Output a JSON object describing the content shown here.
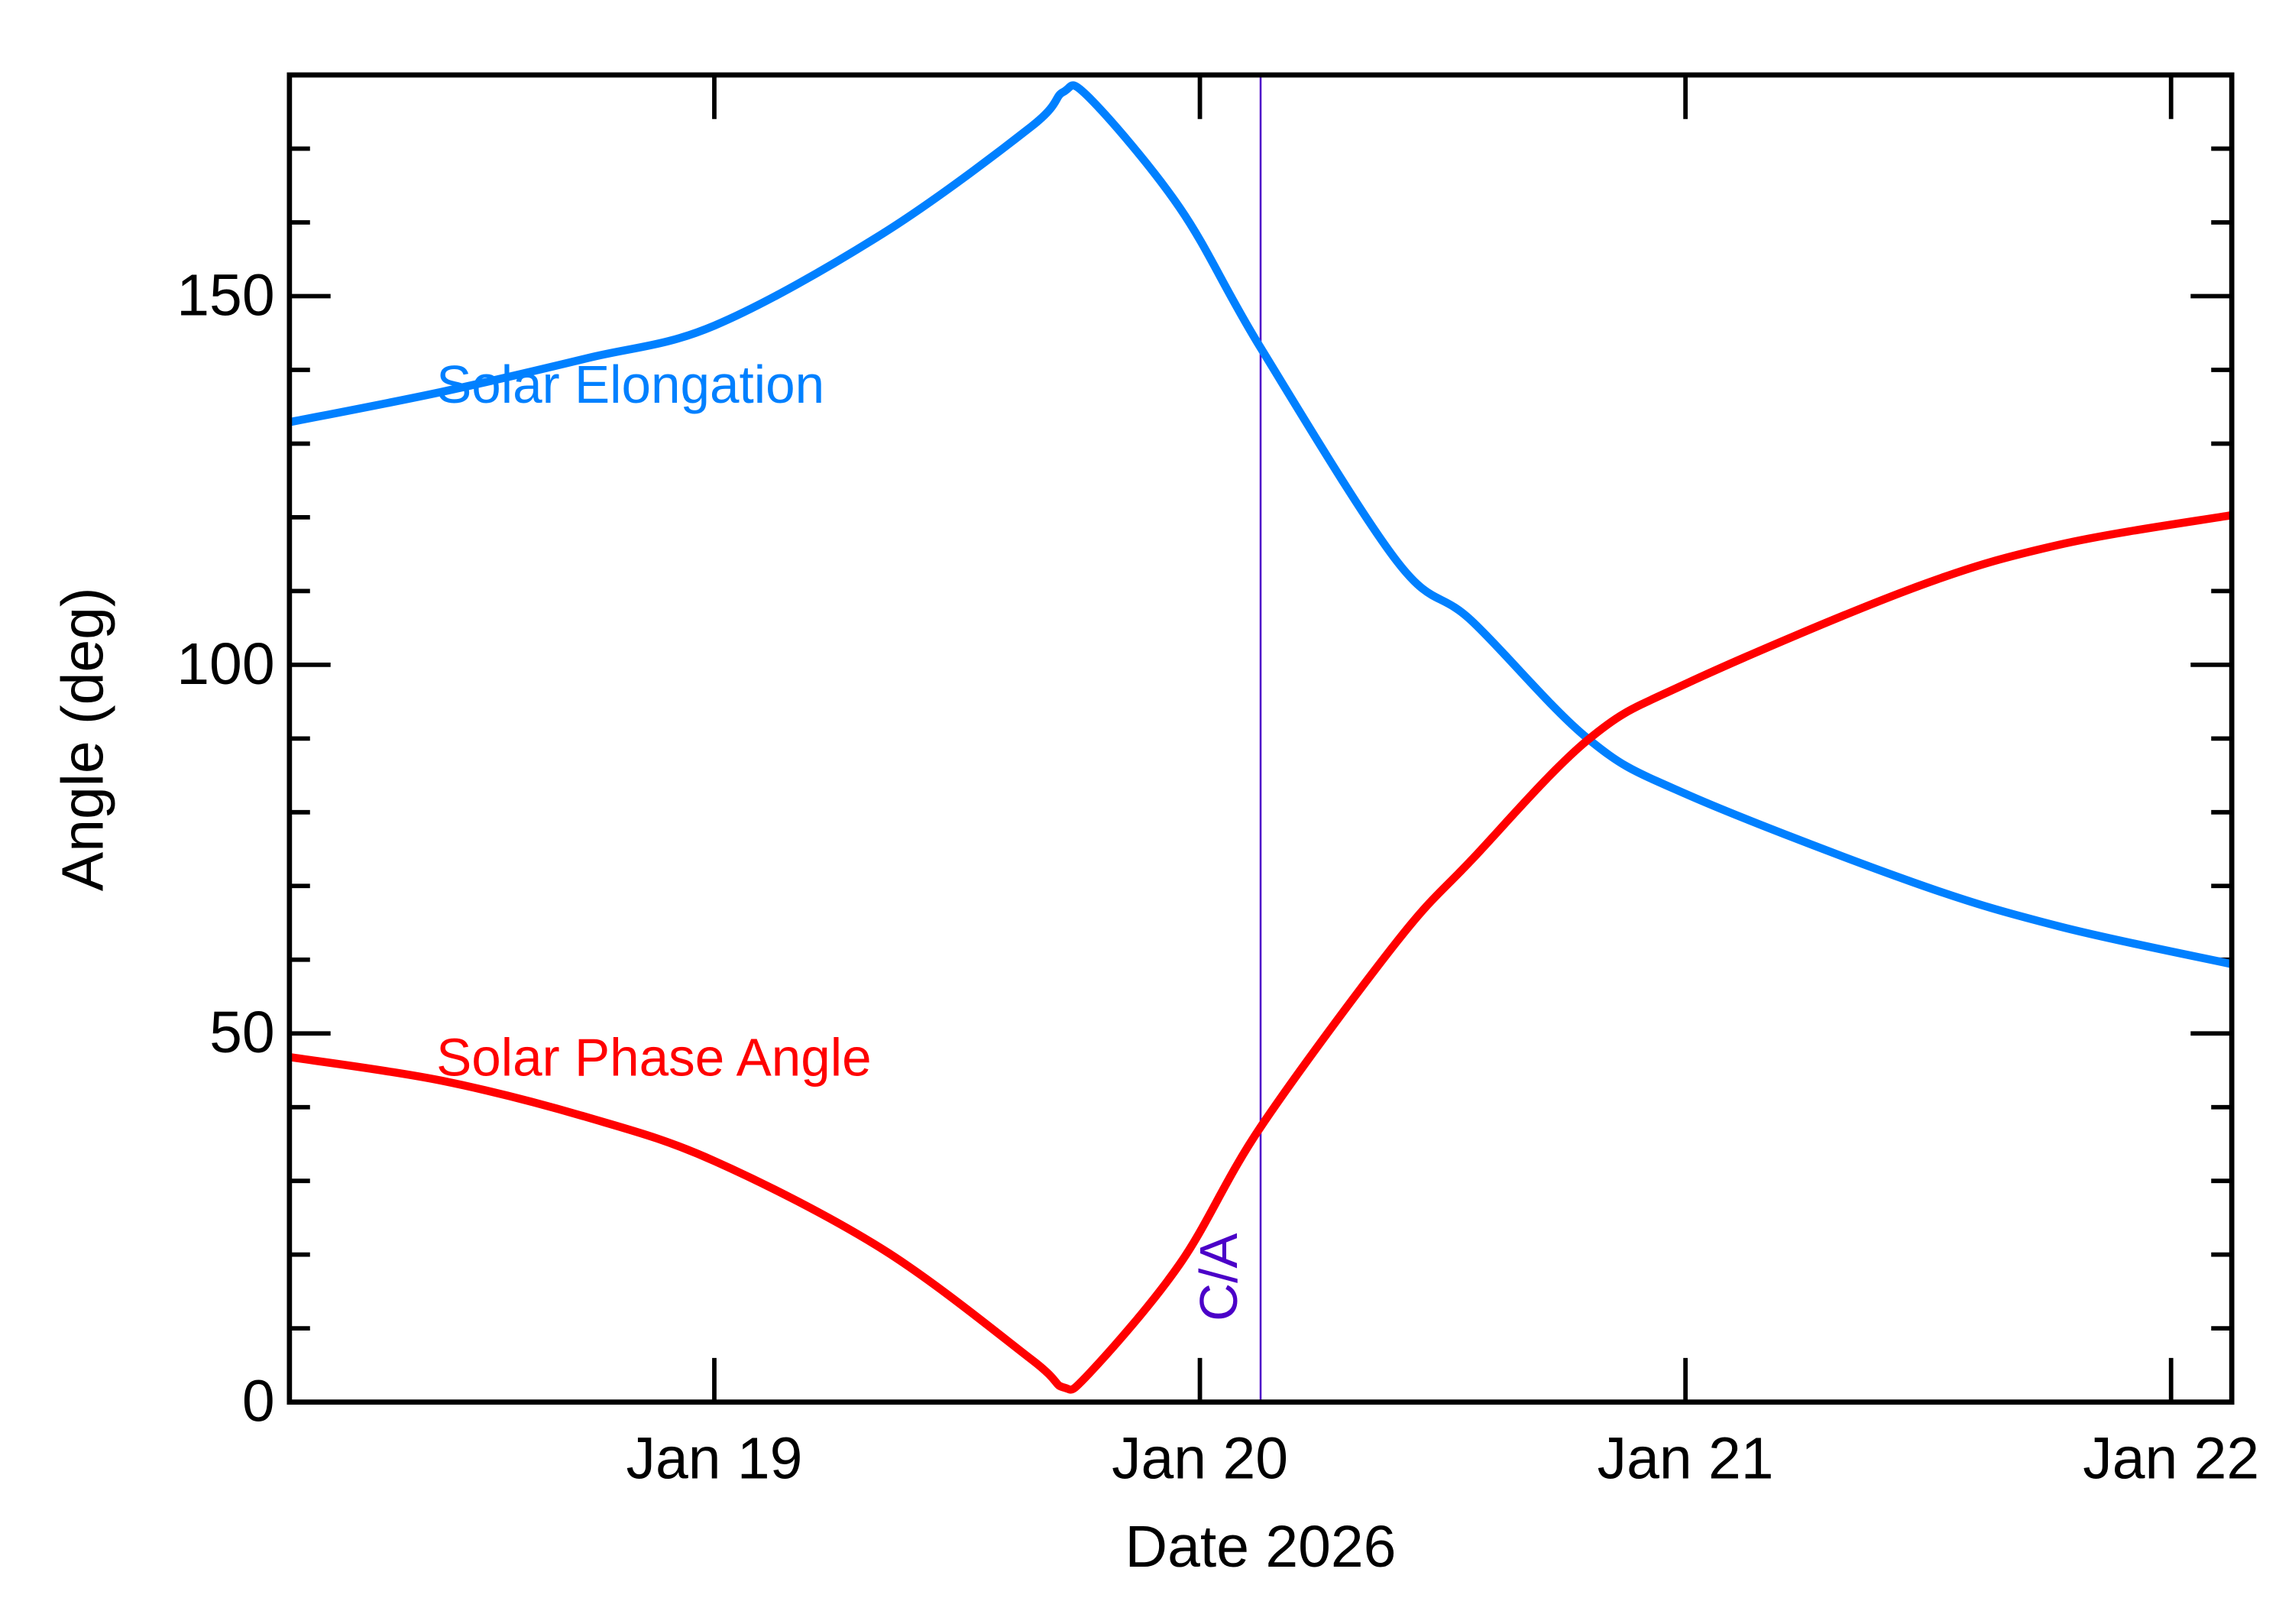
{
  "chart_data": {
    "type": "line",
    "title": "",
    "xlabel": "Date 2026",
    "ylabel": "Angle (deg)",
    "xlim": [
      "2026-01-18T03:00",
      "2026-01-22T03:00"
    ],
    "ylim": [
      0,
      180
    ],
    "x_ticks": [
      {
        "date": "2026-01-19T00:00",
        "label": "Jan 19"
      },
      {
        "date": "2026-01-20T00:00",
        "label": "Jan 20"
      },
      {
        "date": "2026-01-21T00:00",
        "label": "Jan 21"
      },
      {
        "date": "2026-01-22T00:00",
        "label": "Jan 22"
      }
    ],
    "y_ticks": [
      0,
      50,
      100,
      150
    ],
    "y_minor_step": 10,
    "grid": false,
    "series": [
      {
        "name": "Solar Elongation",
        "color": "#0080ff",
        "x": [
          "2026-01-18T03:00",
          "2026-01-18T10:30",
          "2026-01-18T17:45",
          "2026-01-19T00:00",
          "2026-01-19T08:20",
          "2026-01-19T15:40",
          "2026-01-19T17:15",
          "2026-01-19T18:30",
          "2026-01-19T23:00",
          "2026-01-20T03:00",
          "2026-01-20T09:45",
          "2026-01-20T13:25",
          "2026-01-20T19:10",
          "2026-01-21T00:00",
          "2026-01-21T11:15",
          "2026-01-21T18:30",
          "2026-01-22T03:00"
        ],
        "y": [
          132.9,
          137,
          141.6,
          146,
          158.5,
          173,
          177.7,
          177,
          162,
          143,
          114,
          106,
          90,
          82.5,
          70.5,
          64.5,
          59.4
        ]
      },
      {
        "name": "Solar Phase Angle",
        "color": "#ff0000",
        "x": [
          "2026-01-18T03:00",
          "2026-01-18T10:30",
          "2026-01-18T17:45",
          "2026-01-19T00:00",
          "2026-01-19T08:20",
          "2026-01-19T15:40",
          "2026-01-19T17:15",
          "2026-01-19T18:30",
          "2026-01-19T23:00",
          "2026-01-20T03:00",
          "2026-01-20T09:45",
          "2026-01-20T13:25",
          "2026-01-20T19:10",
          "2026-01-21T00:00",
          "2026-01-21T11:15",
          "2026-01-21T18:30",
          "2026-01-22T03:00"
        ],
        "y": [
          46.8,
          43.6,
          38.6,
          32.7,
          20.7,
          5.8,
          2,
          3.8,
          18.7,
          37.3,
          62.5,
          73.5,
          89.8,
          97.4,
          110.4,
          116.3,
          120.3
        ]
      }
    ],
    "annotations": [
      {
        "type": "vline",
        "date": "2026-01-20T03:00",
        "label": "C/A",
        "color": "#4b00c8"
      }
    ]
  }
}
